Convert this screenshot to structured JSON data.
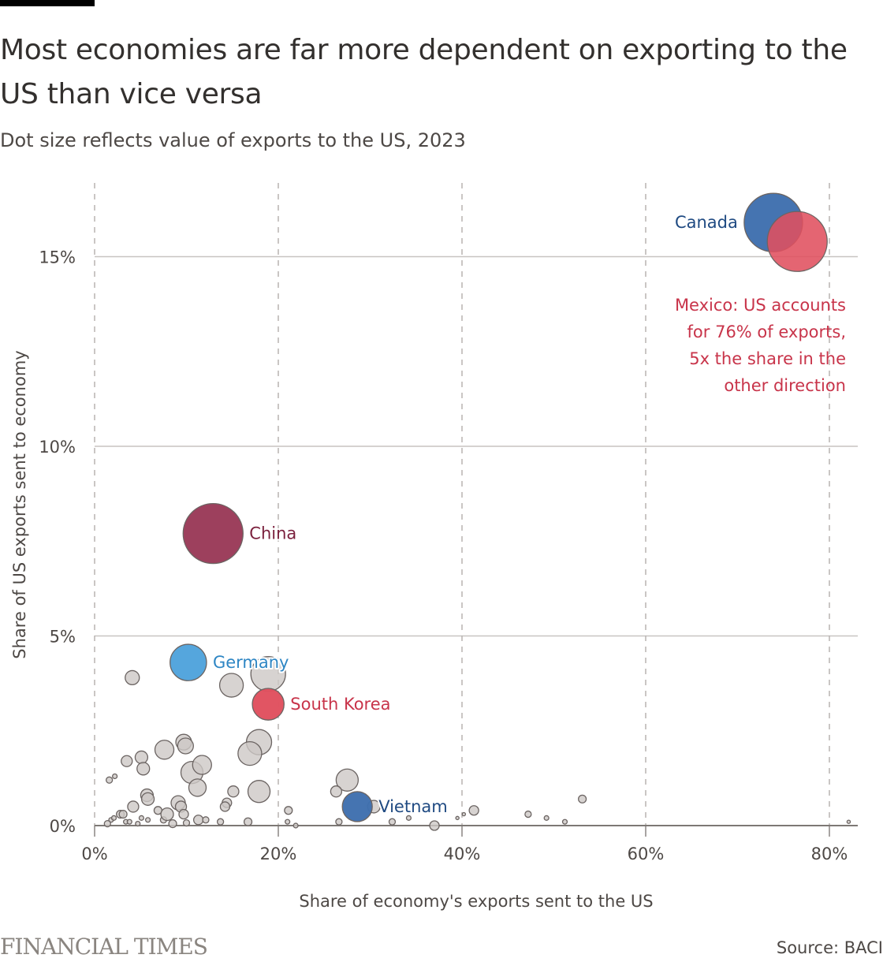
{
  "header": {
    "title": "Most economies are far more dependent on exporting to the US than vice versa",
    "subtitle": "Dot size reflects value of exports to the US, 2023"
  },
  "footer": {
    "logo": "FINANCIAL TIMES",
    "source": "Source: BACI"
  },
  "colors": {
    "canada": "#3f6fae",
    "mexico": "#e0505e",
    "china": "#9a3a58",
    "germany": "#4fa3dc",
    "south_korea": "#e0505e",
    "vietnam": "#3f6fae",
    "other": "#cdc8c5",
    "dot_stroke": "#6b6462",
    "label_canada": "#1f4a82",
    "label_china": "#7a1f3c",
    "label_germany": "#2e86c4",
    "label_south_korea": "#c8344a",
    "label_vietnam": "#1f4a82",
    "annotation": "#c8344a"
  },
  "chart_data": {
    "type": "scatter",
    "title": "Most economies are far more dependent on exporting to the US than vice versa",
    "subtitle": "Dot size reflects value of exports to the US, 2023",
    "xlabel": "Share of economy's exports sent to the US",
    "ylabel": "Share of US exports sent to economy",
    "xlim": [
      0,
      83
    ],
    "ylim": [
      0,
      17
    ],
    "x_ticks": [
      0,
      20,
      40,
      60,
      80
    ],
    "x_tick_labels": [
      "0%",
      "20%",
      "40%",
      "60%",
      "80%"
    ],
    "y_ticks": [
      0,
      5,
      10,
      15
    ],
    "y_tick_labels": [
      "0%",
      "5%",
      "10%",
      "15%"
    ],
    "grid": {
      "x": "dashed",
      "y": "solid"
    },
    "size_note": "size = relative value of exports to the US (China = 100)",
    "annotations": [
      {
        "target": "Mexico",
        "lines": [
          "Mexico: US accounts",
          "for 76% of exports,",
          "5x the share in the",
          "other direction"
        ]
      }
    ],
    "highlighted": [
      {
        "name": "Canada",
        "x": 73.9,
        "y": 15.9,
        "size": 95,
        "color_key": "canada",
        "label_key": "label_canada",
        "label_side": "left"
      },
      {
        "name": "Mexico",
        "x": 76.5,
        "y": 15.4,
        "size": 100,
        "color_key": "mexico",
        "label_key": "",
        "label_side": "none"
      },
      {
        "name": "China",
        "x": 12.9,
        "y": 7.7,
        "size": 100,
        "color_key": "china",
        "label_key": "label_china",
        "label_side": "right"
      },
      {
        "name": "Germany",
        "x": 10.2,
        "y": 4.3,
        "size": 37,
        "color_key": "germany",
        "label_key": "label_germany",
        "label_side": "right"
      },
      {
        "name": "South Korea",
        "x": 18.9,
        "y": 3.2,
        "size": 28,
        "color_key": "south_korea",
        "label_key": "label_south_korea",
        "label_side": "right"
      },
      {
        "name": "Vietnam",
        "x": 28.6,
        "y": 0.5,
        "size": 25,
        "color_key": "vietnam",
        "label_key": "label_vietnam",
        "label_side": "right"
      }
    ],
    "others": [
      {
        "x": 4.1,
        "y": 3.9,
        "size": 5.6
      },
      {
        "x": 14.9,
        "y": 3.7,
        "size": 15.6
      },
      {
        "x": 18.9,
        "y": 4.0,
        "size": 33.5
      },
      {
        "x": 17.9,
        "y": 2.2,
        "size": 17.7
      },
      {
        "x": 16.9,
        "y": 1.9,
        "size": 15.6
      },
      {
        "x": 9.7,
        "y": 2.2,
        "size": 6.9
      },
      {
        "x": 9.9,
        "y": 2.1,
        "size": 6.9
      },
      {
        "x": 7.6,
        "y": 2.0,
        "size": 10.0
      },
      {
        "x": 5.1,
        "y": 1.8,
        "size": 4.4
      },
      {
        "x": 5.3,
        "y": 1.5,
        "size": 4.4
      },
      {
        "x": 3.5,
        "y": 1.7,
        "size": 3.4
      },
      {
        "x": 10.6,
        "y": 1.4,
        "size": 13.6
      },
      {
        "x": 11.7,
        "y": 1.6,
        "size": 10.0
      },
      {
        "x": 11.2,
        "y": 1.0,
        "size": 8.4
      },
      {
        "x": 1.6,
        "y": 1.2,
        "size": 1.1
      },
      {
        "x": 2.2,
        "y": 1.3,
        "size": 0.6
      },
      {
        "x": 15.1,
        "y": 0.9,
        "size": 3.4
      },
      {
        "x": 14.4,
        "y": 0.6,
        "size": 2.5
      },
      {
        "x": 14.2,
        "y": 0.5,
        "size": 2.5
      },
      {
        "x": 17.9,
        "y": 0.9,
        "size": 13.6
      },
      {
        "x": 27.5,
        "y": 1.2,
        "size": 13.6
      },
      {
        "x": 26.3,
        "y": 0.9,
        "size": 3.4
      },
      {
        "x": 30.4,
        "y": 0.5,
        "size": 4.4
      },
      {
        "x": 5.7,
        "y": 0.8,
        "size": 4.4
      },
      {
        "x": 5.8,
        "y": 0.7,
        "size": 4.4
      },
      {
        "x": 4.2,
        "y": 0.5,
        "size": 3.4
      },
      {
        "x": 2.8,
        "y": 0.3,
        "size": 1.7
      },
      {
        "x": 3.1,
        "y": 0.3,
        "size": 1.7
      },
      {
        "x": 1.8,
        "y": 0.15,
        "size": 0.6
      },
      {
        "x": 2.1,
        "y": 0.2,
        "size": 0.6
      },
      {
        "x": 1.4,
        "y": 0.05,
        "size": 1.1
      },
      {
        "x": 3.4,
        "y": 0.1,
        "size": 0.6
      },
      {
        "x": 3.8,
        "y": 0.1,
        "size": 0.6
      },
      {
        "x": 4.7,
        "y": 0.05,
        "size": 0.6
      },
      {
        "x": 5.1,
        "y": 0.2,
        "size": 0.6
      },
      {
        "x": 5.8,
        "y": 0.15,
        "size": 0.6
      },
      {
        "x": 6.9,
        "y": 0.4,
        "size": 1.7
      },
      {
        "x": 7.5,
        "y": 0.15,
        "size": 1.1
      },
      {
        "x": 9.1,
        "y": 0.6,
        "size": 5.6
      },
      {
        "x": 9.4,
        "y": 0.5,
        "size": 3.4
      },
      {
        "x": 9.7,
        "y": 0.3,
        "size": 2.5
      },
      {
        "x": 7.9,
        "y": 0.3,
        "size": 4.4
      },
      {
        "x": 8.5,
        "y": 0.05,
        "size": 1.7
      },
      {
        "x": 10.0,
        "y": 0.07,
        "size": 1.1
      },
      {
        "x": 11.3,
        "y": 0.15,
        "size": 2.5
      },
      {
        "x": 12.1,
        "y": 0.15,
        "size": 1.1
      },
      {
        "x": 13.7,
        "y": 0.1,
        "size": 1.1
      },
      {
        "x": 16.7,
        "y": 0.1,
        "size": 1.7
      },
      {
        "x": 21.1,
        "y": 0.4,
        "size": 1.7
      },
      {
        "x": 21.0,
        "y": 0.1,
        "size": 0.6
      },
      {
        "x": 21.9,
        "y": 0.0,
        "size": 0.6
      },
      {
        "x": 26.6,
        "y": 0.1,
        "size": 1.1
      },
      {
        "x": 32.4,
        "y": 0.1,
        "size": 1.1
      },
      {
        "x": 34.2,
        "y": 0.2,
        "size": 0.6
      },
      {
        "x": 37.0,
        "y": 0.0,
        "size": 2.5
      },
      {
        "x": 39.5,
        "y": 0.2,
        "size": 0.3
      },
      {
        "x": 40.2,
        "y": 0.3,
        "size": 0.3
      },
      {
        "x": 41.3,
        "y": 0.4,
        "size": 2.5
      },
      {
        "x": 47.2,
        "y": 0.3,
        "size": 1.1
      },
      {
        "x": 49.2,
        "y": 0.2,
        "size": 0.6
      },
      {
        "x": 51.2,
        "y": 0.1,
        "size": 0.6
      },
      {
        "x": 53.1,
        "y": 0.7,
        "size": 1.7
      },
      {
        "x": 82.1,
        "y": 0.1,
        "size": 0.3
      }
    ]
  }
}
